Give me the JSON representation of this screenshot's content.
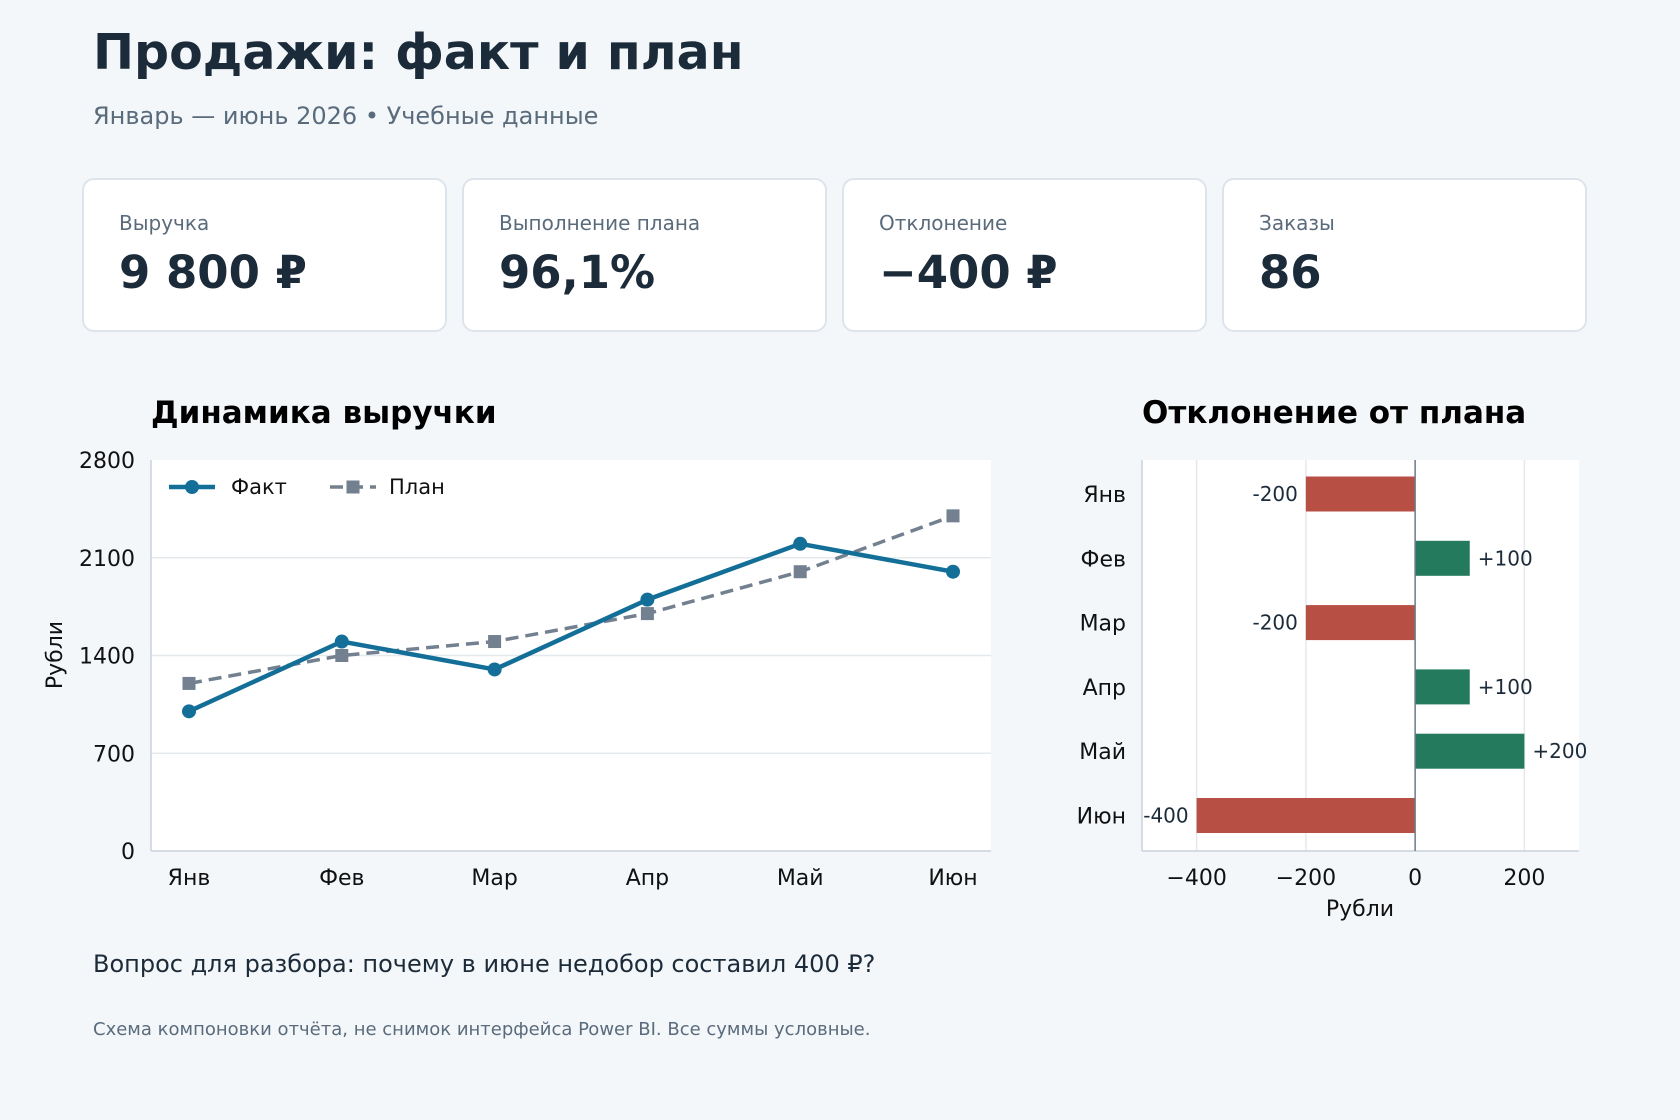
{
  "header": {
    "title": "Продажи: факт и план",
    "subtitle": "Январь — июнь 2026  •  Учебные данные"
  },
  "kpis": [
    {
      "label": "Выручка",
      "value": "9 800 ₽"
    },
    {
      "label": "Выполнение плана",
      "value": "96,1%"
    },
    {
      "label": "Отклонение",
      "value": "−400 ₽"
    },
    {
      "label": "Заказы",
      "value": "86"
    }
  ],
  "colors": {
    "fact": "#136f98",
    "plan": "#72808f",
    "positive": "#237a5c",
    "negative": "#b84f45"
  },
  "chart_data": [
    {
      "type": "line",
      "title": "Динамика выручки",
      "ylabel": "Рубли",
      "xlabel": "",
      "categories": [
        "Янв",
        "Фев",
        "Мар",
        "Апр",
        "Май",
        "Июн"
      ],
      "series": [
        {
          "name": "Факт",
          "values": [
            1000,
            1500,
            1300,
            1800,
            2200,
            2000
          ],
          "marker": "circle",
          "line": "solid"
        },
        {
          "name": "План",
          "values": [
            1200,
            1400,
            1500,
            1700,
            2000,
            2400
          ],
          "marker": "square",
          "line": "dashed"
        }
      ],
      "ylim": [
        0,
        2800
      ],
      "yticks": [
        0,
        700,
        1400,
        2100,
        2800
      ],
      "grid": "horizontal",
      "legend": "top-left"
    },
    {
      "type": "bar",
      "orientation": "horizontal",
      "title": "Отклонение от плана",
      "xlabel": "Рубли",
      "categories": [
        "Янв",
        "Фев",
        "Мар",
        "Апр",
        "Май",
        "Июн"
      ],
      "values": [
        -200,
        100,
        -200,
        100,
        200,
        -400
      ],
      "value_labels": [
        "-200",
        "+100",
        "-200",
        "+100",
        "+200",
        "-400"
      ],
      "xlim": [
        -500,
        300
      ],
      "xticks": [
        -400,
        -200,
        0,
        200
      ],
      "xtick_labels": [
        "−400",
        "−200",
        "0",
        "200"
      ],
      "grid": "vertical"
    }
  ],
  "footer": {
    "question": "Вопрос для разбора: почему в июне недобор составил 400 ₽?",
    "note": "Схема компоновки отчёта, не снимок интерфейса Power BI. Все суммы условные."
  }
}
